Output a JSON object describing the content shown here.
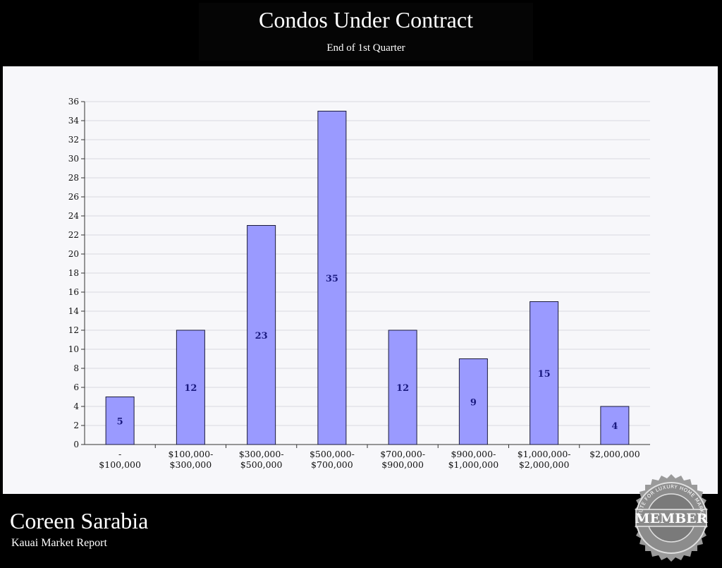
{
  "header": {
    "title": "Condos Under Contract",
    "subtitle": "End of 1st Quarter"
  },
  "footer": {
    "name": "Coreen Sarabia",
    "subtitle": "Kauai Market Report"
  },
  "badge": {
    "center_text": "MEMBER",
    "ring_text": "INSTITUTE FOR LUXURY HOME MARKETING",
    "icon": "member-seal"
  },
  "colors": {
    "bar_fill": "#9a9aff",
    "bar_stroke": "#1a1a3a",
    "bar_label": "#1a1a80",
    "background": "#000000",
    "panel": "#f7f7fa"
  },
  "chart_data": {
    "type": "bar",
    "categories": [
      [
        "-",
        "$100,000"
      ],
      [
        "$100,000-",
        "$300,000"
      ],
      [
        "$300,000-",
        "$500,000"
      ],
      [
        "$500,000-",
        "$700,000"
      ],
      [
        "$700,000-",
        "$900,000"
      ],
      [
        "$900,000-",
        "$1,000,000"
      ],
      [
        "$1,000,000-",
        "$2,000,000"
      ],
      [
        "$2,000,000"
      ]
    ],
    "values": [
      5,
      12,
      23,
      35,
      12,
      9,
      15,
      4
    ],
    "data_labels": [
      "5",
      "12",
      "23",
      "35",
      "12",
      "9",
      "15",
      "4"
    ],
    "ylim": [
      0,
      36
    ],
    "yticks": [
      0,
      2,
      4,
      6,
      8,
      10,
      12,
      14,
      16,
      18,
      20,
      22,
      24,
      26,
      28,
      30,
      32,
      34,
      36
    ],
    "grid": true,
    "xlabel": "",
    "ylabel": ""
  }
}
